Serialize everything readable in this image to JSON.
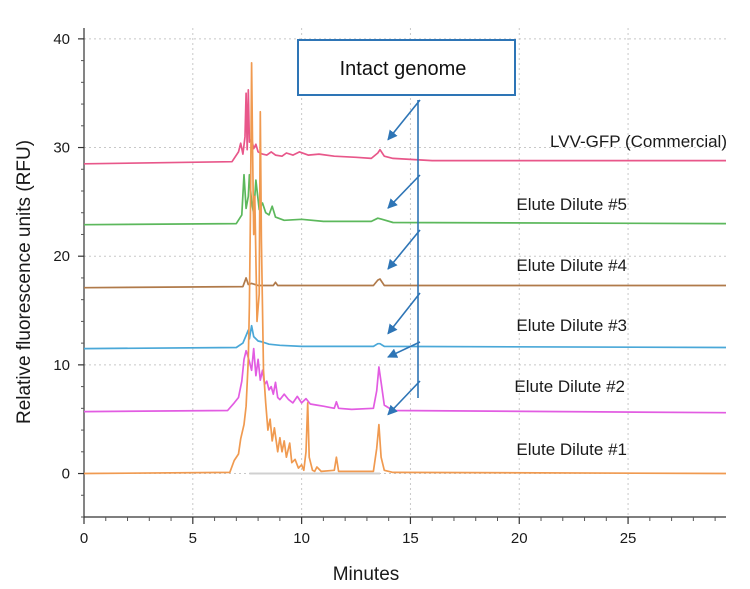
{
  "chart_data": {
    "type": "line",
    "title": "",
    "xlabel": "Minutes",
    "ylabel": "Relative  fluorescence units (RFU)",
    "xlim": [
      0,
      29.5
    ],
    "ylim": [
      -4,
      41
    ],
    "x_ticks": [
      0,
      5,
      10,
      15,
      20,
      25
    ],
    "y_ticks": [
      0,
      10,
      20,
      30,
      40
    ],
    "grid": true,
    "annotation": {
      "text": "Intact genome",
      "arrow_target_x": 13.6
    },
    "series": [
      {
        "name": "LVV-GFP (Commercial)",
        "color": "#e8578a",
        "points": [
          [
            0,
            28.5
          ],
          [
            6.8,
            28.7
          ],
          [
            7.1,
            29.6
          ],
          [
            7.2,
            30.4
          ],
          [
            7.3,
            29.4
          ],
          [
            7.4,
            31.0
          ],
          [
            7.45,
            35.0
          ],
          [
            7.5,
            29.8
          ],
          [
            7.55,
            35.3
          ],
          [
            7.6,
            30.5
          ],
          [
            7.7,
            30.8
          ],
          [
            7.8,
            29.9
          ],
          [
            7.9,
            30.3
          ],
          [
            8.0,
            29.6
          ],
          [
            8.2,
            29.4
          ],
          [
            8.4,
            29.3
          ],
          [
            8.6,
            29.6
          ],
          [
            8.8,
            29.3
          ],
          [
            9.1,
            29.2
          ],
          [
            9.3,
            29.5
          ],
          [
            9.6,
            29.3
          ],
          [
            9.9,
            29.6
          ],
          [
            10.3,
            29.3
          ],
          [
            10.8,
            29.4
          ],
          [
            11.5,
            29.2
          ],
          [
            12.5,
            29.1
          ],
          [
            13.2,
            29.0
          ],
          [
            13.5,
            29.5
          ],
          [
            13.6,
            29.8
          ],
          [
            13.8,
            29.2
          ],
          [
            14.2,
            29.0
          ],
          [
            16,
            28.8
          ],
          [
            29.5,
            28.8
          ]
        ]
      },
      {
        "name": "Elute Dilute #5",
        "color": "#5cb85c",
        "points": [
          [
            0,
            22.9
          ],
          [
            7.0,
            23.0
          ],
          [
            7.25,
            23.8
          ],
          [
            7.35,
            27.5
          ],
          [
            7.45,
            24.4
          ],
          [
            7.55,
            25.5
          ],
          [
            7.6,
            27.5
          ],
          [
            7.7,
            25.0
          ],
          [
            7.8,
            23.9
          ],
          [
            7.9,
            27.0
          ],
          [
            8.05,
            24.3
          ],
          [
            8.2,
            24.9
          ],
          [
            8.35,
            24.0
          ],
          [
            8.5,
            23.8
          ],
          [
            8.65,
            24.6
          ],
          [
            8.8,
            23.6
          ],
          [
            9.2,
            23.3
          ],
          [
            10,
            23.4
          ],
          [
            11,
            23.2
          ],
          [
            13.2,
            23.2
          ],
          [
            13.5,
            23.5
          ],
          [
            13.7,
            23.4
          ],
          [
            14.2,
            23.1
          ],
          [
            29.5,
            23.0
          ]
        ]
      },
      {
        "name": "Elute Dilute #4",
        "color": "#b07a4a",
        "points": [
          [
            0,
            17.1
          ],
          [
            7.3,
            17.2
          ],
          [
            7.45,
            18.0
          ],
          [
            7.55,
            17.4
          ],
          [
            7.7,
            17.5
          ],
          [
            8.0,
            17.3
          ],
          [
            8.7,
            17.3
          ],
          [
            8.8,
            17.6
          ],
          [
            8.9,
            17.3
          ],
          [
            13.3,
            17.3
          ],
          [
            13.5,
            17.8
          ],
          [
            13.6,
            17.9
          ],
          [
            13.8,
            17.3
          ],
          [
            29.5,
            17.3
          ]
        ]
      },
      {
        "name": "Elute Dilute #3",
        "color": "#4aa8d8",
        "points": [
          [
            0,
            11.5
          ],
          [
            7.0,
            11.6
          ],
          [
            7.3,
            12.0
          ],
          [
            7.45,
            12.7
          ],
          [
            7.55,
            13.2
          ],
          [
            7.6,
            12.4
          ],
          [
            7.7,
            13.6
          ],
          [
            7.8,
            12.6
          ],
          [
            8.0,
            12.2
          ],
          [
            8.2,
            12.1
          ],
          [
            8.5,
            11.9
          ],
          [
            9.0,
            11.8
          ],
          [
            10,
            11.7
          ],
          [
            13.3,
            11.7
          ],
          [
            13.5,
            11.95
          ],
          [
            13.6,
            11.95
          ],
          [
            13.8,
            11.7
          ],
          [
            29.5,
            11.6
          ]
        ]
      },
      {
        "name": "Elute Dilute #2",
        "color": "#e25ce2",
        "points": [
          [
            0,
            5.7
          ],
          [
            6.6,
            5.8
          ],
          [
            6.9,
            6.5
          ],
          [
            7.1,
            7.0
          ],
          [
            7.25,
            8.5
          ],
          [
            7.35,
            10.5
          ],
          [
            7.45,
            11.3
          ],
          [
            7.5,
            11.0
          ],
          [
            7.6,
            10.3
          ],
          [
            7.7,
            9.5
          ],
          [
            7.8,
            11.5
          ],
          [
            7.9,
            9.0
          ],
          [
            8.0,
            10.5
          ],
          [
            8.1,
            8.6
          ],
          [
            8.2,
            9.5
          ],
          [
            8.3,
            8.2
          ],
          [
            8.4,
            8.5
          ],
          [
            8.5,
            7.7
          ],
          [
            8.6,
            8.0
          ],
          [
            8.7,
            7.3
          ],
          [
            8.8,
            8.4
          ],
          [
            8.9,
            7.0
          ],
          [
            9.0,
            6.8
          ],
          [
            9.2,
            7.3
          ],
          [
            9.4,
            6.8
          ],
          [
            9.6,
            6.5
          ],
          [
            9.8,
            7.1
          ],
          [
            10.0,
            6.5
          ],
          [
            10.2,
            6.9
          ],
          [
            10.4,
            6.4
          ],
          [
            10.7,
            6.3
          ],
          [
            11.0,
            6.2
          ],
          [
            11.5,
            6.0
          ],
          [
            11.6,
            6.6
          ],
          [
            11.7,
            6.0
          ],
          [
            12.3,
            5.9
          ],
          [
            13.3,
            6.0
          ],
          [
            13.45,
            7.6
          ],
          [
            13.55,
            9.8
          ],
          [
            13.65,
            8.4
          ],
          [
            13.8,
            6.3
          ],
          [
            14.2,
            5.8
          ],
          [
            29.5,
            5.6
          ]
        ]
      },
      {
        "name": "Elute Dilute #1",
        "color": "#f09a50",
        "points": [
          [
            0,
            0.0
          ],
          [
            6.7,
            0.1
          ],
          [
            6.9,
            1.2
          ],
          [
            7.1,
            1.8
          ],
          [
            7.2,
            3.2
          ],
          [
            7.35,
            4.5
          ],
          [
            7.45,
            6.2
          ],
          [
            7.55,
            10.5
          ],
          [
            7.6,
            15.5
          ],
          [
            7.65,
            24.5
          ],
          [
            7.7,
            37.8
          ],
          [
            7.75,
            29.0
          ],
          [
            7.8,
            22.0
          ],
          [
            7.85,
            25.5
          ],
          [
            7.95,
            14.0
          ],
          [
            8.05,
            16.5
          ],
          [
            8.1,
            33.3
          ],
          [
            8.15,
            21.5
          ],
          [
            8.25,
            9.5
          ],
          [
            8.35,
            6.5
          ],
          [
            8.45,
            4.0
          ],
          [
            8.55,
            5.0
          ],
          [
            8.65,
            3.0
          ],
          [
            8.75,
            4.2
          ],
          [
            8.9,
            2.0
          ],
          [
            9.0,
            3.3
          ],
          [
            9.1,
            2.0
          ],
          [
            9.2,
            3.0
          ],
          [
            9.3,
            1.5
          ],
          [
            9.45,
            2.8
          ],
          [
            9.55,
            1.0
          ],
          [
            9.7,
            1.3
          ],
          [
            9.85,
            0.5
          ],
          [
            10.0,
            0.8
          ],
          [
            10.1,
            0.3
          ],
          [
            10.2,
            2.0
          ],
          [
            10.28,
            6.5
          ],
          [
            10.35,
            1.5
          ],
          [
            10.5,
            0.3
          ],
          [
            10.6,
            0.2
          ],
          [
            10.7,
            0.6
          ],
          [
            10.9,
            0.2
          ],
          [
            11.5,
            0.3
          ],
          [
            11.6,
            1.5
          ],
          [
            11.7,
            0.2
          ],
          [
            13.3,
            0.2
          ],
          [
            13.45,
            2.3
          ],
          [
            13.55,
            4.5
          ],
          [
            13.65,
            1.5
          ],
          [
            13.8,
            0.3
          ],
          [
            14.2,
            0.1
          ],
          [
            29.5,
            0.0
          ]
        ]
      }
    ]
  }
}
